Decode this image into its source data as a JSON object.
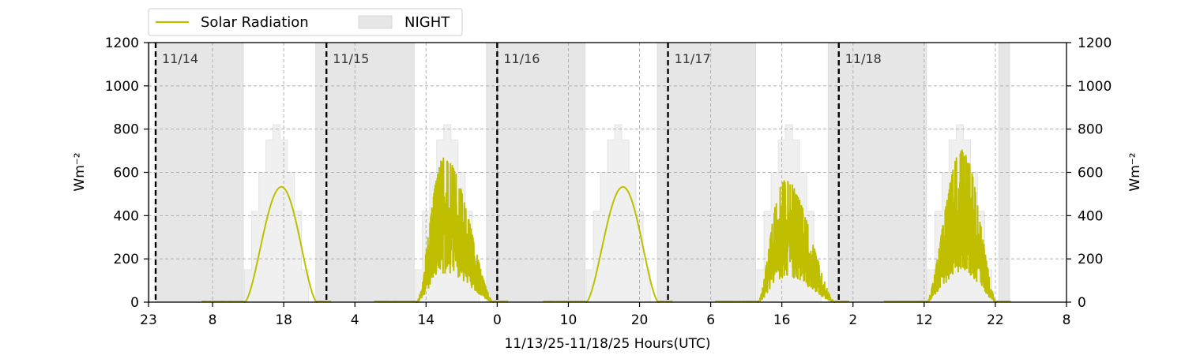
{
  "chart_data": {
    "type": "line",
    "xlabel": "11/13/25-11/18/25  Hours(UTC)",
    "ylabel_left": "Wm⁻²",
    "ylabel_right": "Wm⁻²",
    "ylim": [
      0,
      1200
    ],
    "yticks": [
      0,
      200,
      400,
      600,
      800,
      1000,
      1200
    ],
    "x_range_hours_utc": [
      "11/13 23:00",
      "11/19 08:00"
    ],
    "xticks": [
      "23",
      "8",
      "18",
      "4",
      "14",
      "0",
      "10",
      "20",
      "6",
      "16",
      "2",
      "12",
      "22",
      "8"
    ],
    "xticks_times": [
      "11/13 23:00",
      "11/14 08:00",
      "11/14 18:00",
      "11/15 04:00",
      "11/15 14:00",
      "11/16 00:00",
      "11/16 10:00",
      "11/16 20:00",
      "11/17 06:00",
      "11/17 16:00",
      "11/18 02:00",
      "11/18 12:00",
      "11/18 22:00",
      "11/19 08:00"
    ],
    "grid": true,
    "legend_placement": "top-left, above plot",
    "legend": [
      {
        "label": "Solar Radiation",
        "kind": "line",
        "color": "#bfbf00"
      },
      {
        "label": "NIGHT",
        "kind": "patch",
        "color": "#e6e6e6"
      }
    ],
    "day_markers": [
      {
        "label": "11/14",
        "time": "11/14 00:00"
      },
      {
        "label": "11/15",
        "time": "11/15 00:00"
      },
      {
        "label": "11/16",
        "time": "11/16 00:00"
      },
      {
        "label": "11/17",
        "time": "11/17 00:00"
      },
      {
        "label": "11/18",
        "time": "11/18 00:00"
      }
    ],
    "night_periods": [
      {
        "start": "11/13 23:00",
        "end": "11/13 23:12"
      },
      {
        "start": "11/14 00:00",
        "end": "11/14 12:20"
      },
      {
        "start": "11/14 22:30",
        "end": "11/15 12:20"
      },
      {
        "start": "11/15 22:30",
        "end": "11/16 12:20"
      },
      {
        "start": "11/16 22:30",
        "end": "11/17 12:20"
      },
      {
        "start": "11/17 22:30",
        "end": "11/18 12:20"
      },
      {
        "start": "11/18 22:30",
        "end": "11/18 24:00"
      }
    ],
    "clear_sky_envelope": {
      "color": "#f0f0f0",
      "hourly_profile": [
        {
          "hour": "12:00",
          "value": 0
        },
        {
          "hour": "13:00",
          "value": 150
        },
        {
          "hour": "14:00",
          "value": 420
        },
        {
          "hour": "15:00",
          "value": 600
        },
        {
          "hour": "16:00",
          "value": 750
        },
        {
          "hour": "17:00",
          "value": 820
        },
        {
          "hour": "18:00",
          "value": 750
        },
        {
          "hour": "19:00",
          "value": 600
        },
        {
          "hour": "20:00",
          "value": 420
        },
        {
          "hour": "21:00",
          "value": 150
        },
        {
          "hour": "22:00",
          "value": 0
        }
      ]
    },
    "series": [
      {
        "name": "Solar Radiation",
        "color": "#bfbf00",
        "days": [
          {
            "date": "11/14",
            "condition": "clear",
            "peak": 533,
            "peak_time": "17:40",
            "sunrise": "12:30",
            "sunset": "22:40"
          },
          {
            "date": "11/15",
            "condition": "cloudy",
            "peak": 670,
            "peak_time": "16:30",
            "sunrise": "12:40",
            "sunset": "23:30"
          },
          {
            "date": "11/16",
            "condition": "clear",
            "peak": 533,
            "peak_time": "17:40",
            "sunrise": "12:30",
            "sunset": "22:40"
          },
          {
            "date": "11/17",
            "condition": "cloudy",
            "peak": 570,
            "peak_time": "16:20",
            "sunrise": "12:40",
            "sunset": "23:30"
          },
          {
            "date": "11/18",
            "condition": "cloudy",
            "peak": 705,
            "peak_time": "17:20",
            "sunrise": "12:20",
            "sunset": "22:10"
          }
        ]
      }
    ]
  }
}
